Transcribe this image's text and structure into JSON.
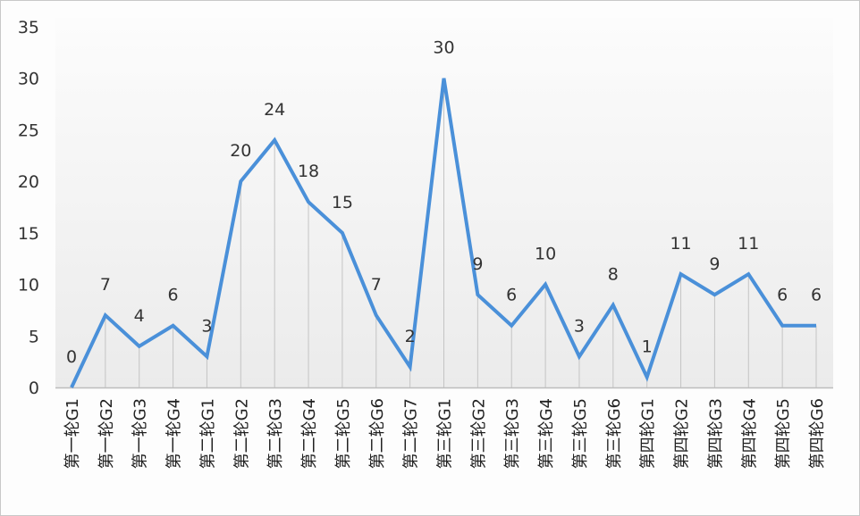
{
  "chart_data": {
    "type": "line",
    "title": "",
    "xlabel": "",
    "ylabel": "",
    "ylim": [
      0,
      35
    ],
    "yticks": [
      0,
      5,
      10,
      15,
      20,
      25,
      30,
      35
    ],
    "grid": false,
    "drop_lines": true,
    "legend": null,
    "data_labels": true,
    "categories": [
      "第一轮G1",
      "第一轮G2",
      "第一轮G3",
      "第一轮G4",
      "第二轮G1",
      "第二轮G2",
      "第二轮G3",
      "第二轮G4",
      "第二轮G5",
      "第二轮G6",
      "第二轮G7",
      "第三轮G1",
      "第三轮G2",
      "第三轮G3",
      "第三轮G4",
      "第三轮G5",
      "第三轮G6",
      "第四轮G1",
      "第四轮G2",
      "第四轮G3",
      "第四轮G4",
      "第四轮G5",
      "第四轮G6"
    ],
    "series": [
      {
        "name": "",
        "color": "#4a90d9",
        "values": [
          0,
          7,
          4,
          6,
          3,
          20,
          24,
          18,
          15,
          7,
          2,
          30,
          9,
          6,
          10,
          3,
          8,
          1,
          11,
          9,
          11,
          6,
          6
        ]
      }
    ]
  },
  "colors": {
    "line": "#4a90d9",
    "drop_line": "#c4c4c4",
    "axis": "#bdbdbd",
    "text": "#333333",
    "plot_bg_top": "#fbfbfb",
    "plot_bg_bottom": "#ececec"
  }
}
